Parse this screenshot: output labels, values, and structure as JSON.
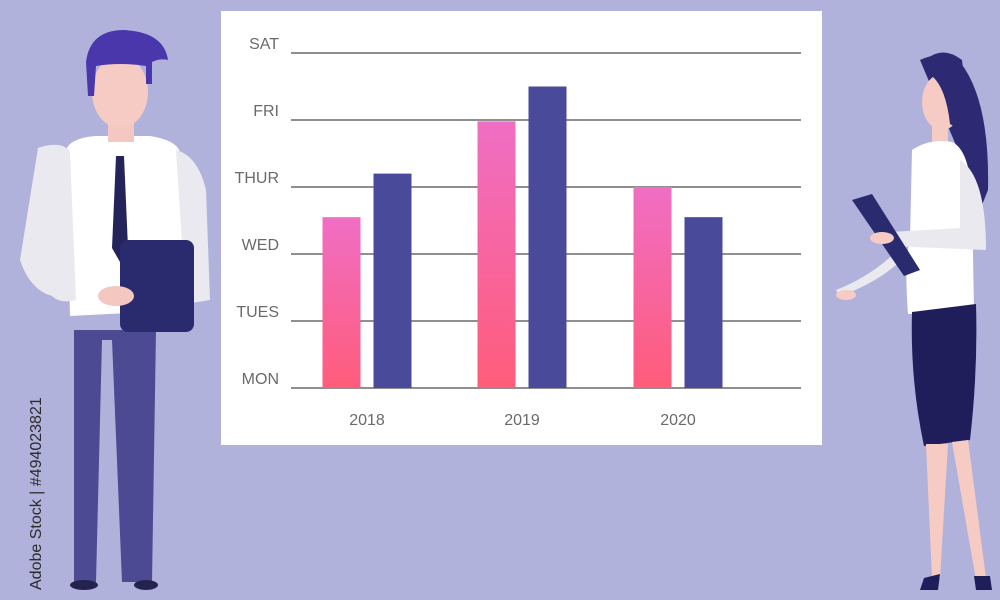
{
  "watermark": "Adobe Stock | #494023821",
  "colors": {
    "background": "#b1b2dc",
    "board": "#ffffff",
    "grid": "#8f8f8f",
    "bar_pink_top": "#f06ec4",
    "bar_pink_bottom": "#ff5c7a",
    "bar_navy": "#4a4a9a"
  },
  "chart_data": {
    "type": "bar",
    "categories": [
      "2018",
      "2019",
      "2020"
    ],
    "y_tick_labels": [
      "MON",
      "TUES",
      "WED",
      "THUR",
      "FRI",
      "SAT"
    ],
    "ylim": [
      0,
      5
    ],
    "series": [
      {
        "color": "pink",
        "values": [
          2.55,
          3.98,
          3.0
        ]
      },
      {
        "color": "navy",
        "values": [
          3.2,
          4.5,
          2.55
        ]
      }
    ],
    "grid": true,
    "title": "",
    "xlabel": "",
    "ylabel": ""
  }
}
